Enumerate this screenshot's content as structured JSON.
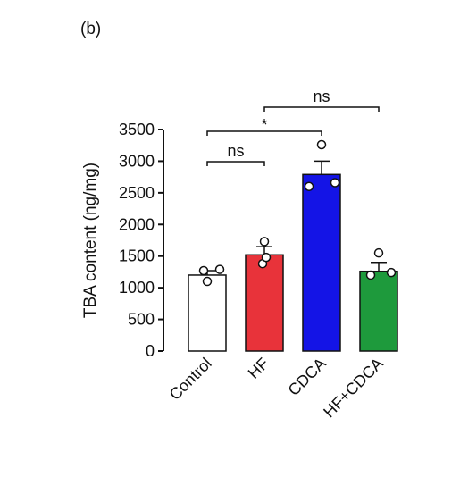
{
  "panel_label": "(b)",
  "chart_data": {
    "type": "bar",
    "title": "",
    "xlabel": "",
    "ylabel": "TBA content (ng/mg)",
    "ylim": [
      0,
      3500
    ],
    "yticks": [
      "0",
      "500",
      "1000",
      "1500",
      "2000",
      "2500",
      "3000",
      "3500"
    ],
    "categories": [
      "Control",
      "HF",
      "CDCA",
      "HF+CDCA"
    ],
    "values": [
      1200,
      1520,
      2790,
      1260
    ],
    "errors": [
      70,
      130,
      210,
      140
    ],
    "bar_colors": [
      "#ffffff",
      "#e8333a",
      "#1414e6",
      "#1e9a3c"
    ],
    "points": [
      [
        1100,
        1270,
        1290
      ],
      [
        1380,
        1480,
        1730
      ],
      [
        2600,
        2660,
        3260
      ],
      [
        1200,
        1240,
        1550
      ]
    ],
    "significance": [
      {
        "from": "Control",
        "to": "HF",
        "label": "ns"
      },
      {
        "from": "Control",
        "to": "CDCA",
        "label": "*"
      },
      {
        "from": "HF",
        "to": "HF+CDCA",
        "label": "ns"
      }
    ]
  }
}
